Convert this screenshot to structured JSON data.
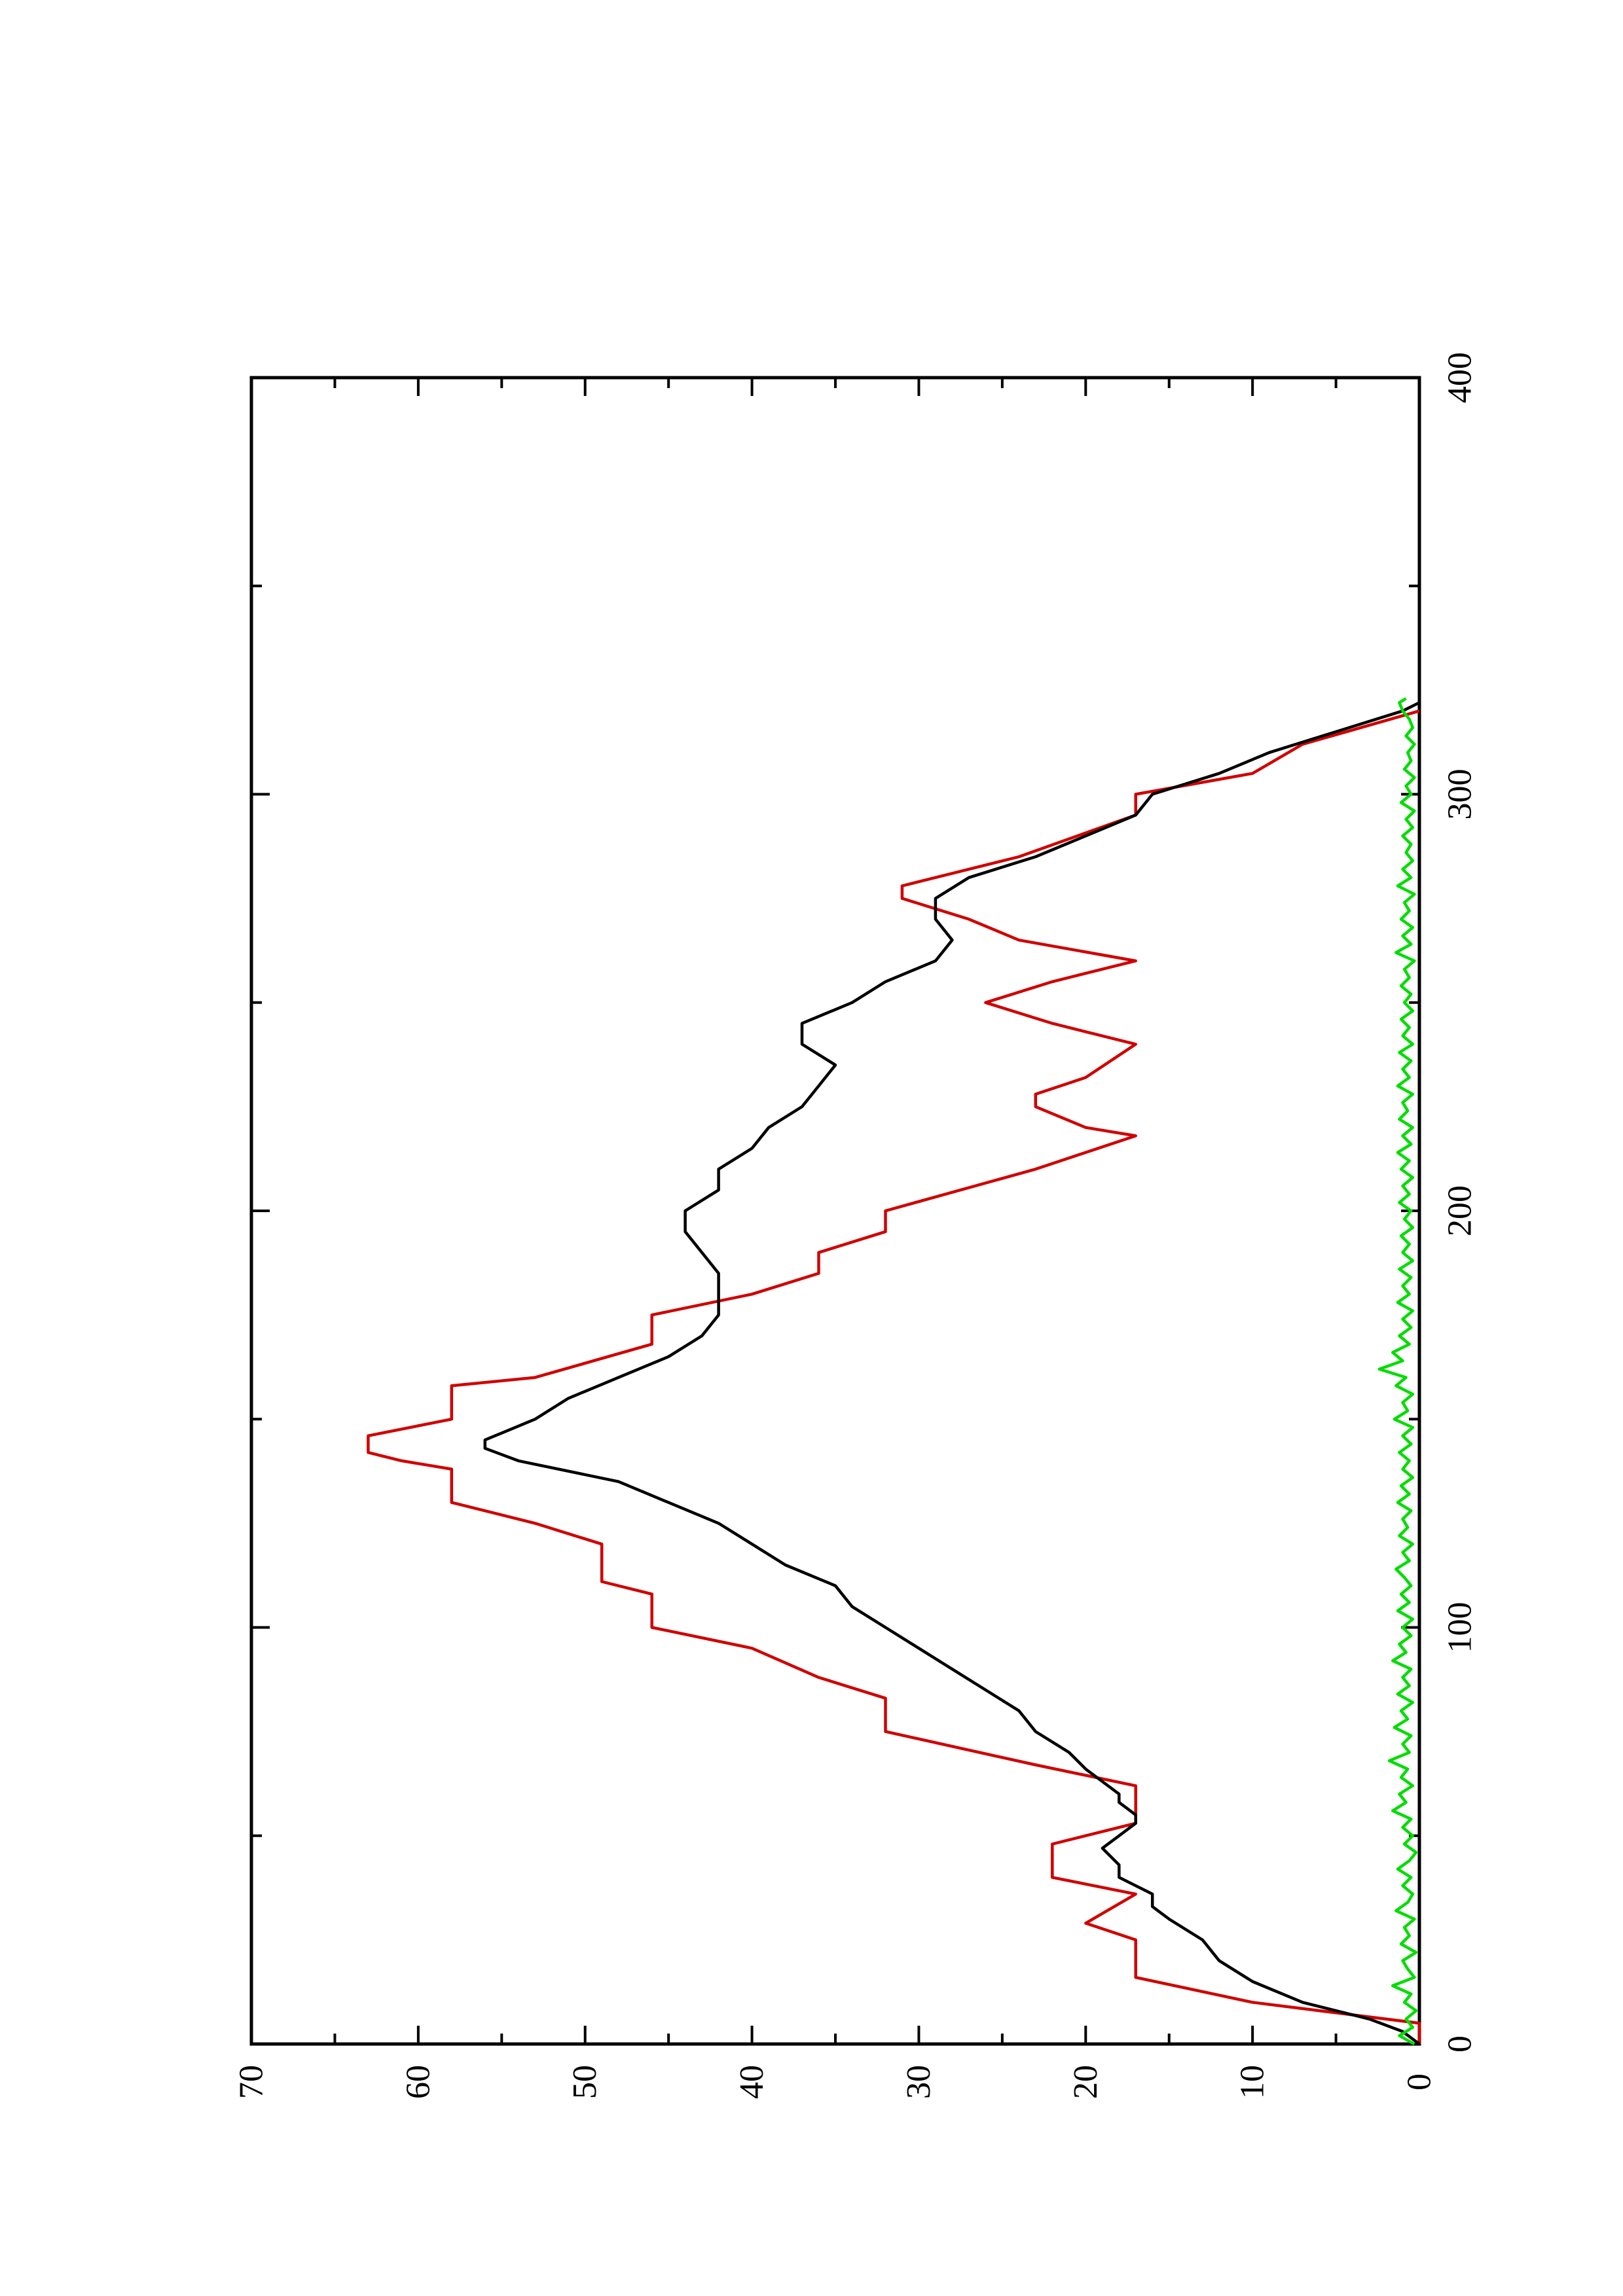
{
  "chart_data": {
    "type": "line",
    "rotated": "page rotated 90 degrees counter-clockwise (x axis runs bottom-to-top on the right edge, y axis runs right-to-left on the bottom edge)",
    "title": "",
    "xlabel": "",
    "ylabel": "",
    "xlim": [
      0,
      400
    ],
    "ylim": [
      0,
      70
    ],
    "x_ticks": [
      0,
      100,
      200,
      300,
      400
    ],
    "y_ticks": [
      0,
      10,
      20,
      30,
      40,
      50,
      60,
      70
    ],
    "x_tick_labels": [
      "0",
      "100",
      "200",
      "300",
      "400"
    ],
    "y_tick_labels": [
      "0",
      "10",
      "20",
      "30",
      "40",
      "50",
      "60",
      "70"
    ],
    "grid": false,
    "legend": "none",
    "series": [
      {
        "color": "#d00000",
        "points": [
          [
            0,
            0
          ],
          [
            5,
            0
          ],
          [
            10,
            10
          ],
          [
            16,
            17
          ],
          [
            25,
            17
          ],
          [
            29,
            20
          ],
          [
            36,
            17
          ],
          [
            40,
            22
          ],
          [
            48,
            22
          ],
          [
            53,
            17
          ],
          [
            62,
            17
          ],
          [
            67,
            23
          ],
          [
            75,
            32
          ],
          [
            83,
            32
          ],
          [
            88,
            36
          ],
          [
            95,
            40
          ],
          [
            100,
            46
          ],
          [
            108,
            46
          ],
          [
            111,
            49
          ],
          [
            120,
            49
          ],
          [
            125,
            53
          ],
          [
            130,
            58
          ],
          [
            138,
            58
          ],
          [
            140,
            61
          ],
          [
            142,
            63
          ],
          [
            146,
            63
          ],
          [
            150,
            58
          ],
          [
            158,
            58
          ],
          [
            160,
            53
          ],
          [
            168,
            46
          ],
          [
            175,
            46
          ],
          [
            180,
            40
          ],
          [
            185,
            36
          ],
          [
            190,
            36
          ],
          [
            195,
            32
          ],
          [
            200,
            32
          ],
          [
            210,
            23
          ],
          [
            218,
            17
          ],
          [
            220,
            20
          ],
          [
            225,
            23
          ],
          [
            228,
            23
          ],
          [
            232,
            20
          ],
          [
            240,
            17
          ],
          [
            245,
            22
          ],
          [
            250,
            26
          ],
          [
            255,
            22
          ],
          [
            260,
            17
          ],
          [
            265,
            24
          ],
          [
            270,
            27
          ],
          [
            275,
            31
          ],
          [
            278,
            31
          ],
          [
            282,
            27
          ],
          [
            285,
            24
          ],
          [
            295,
            17
          ],
          [
            300,
            17
          ],
          [
            305,
            10
          ],
          [
            312,
            7
          ],
          [
            320,
            0
          ]
        ]
      },
      {
        "color": "#000000",
        "points": [
          [
            0,
            0
          ],
          [
            3,
            1
          ],
          [
            6,
            3
          ],
          [
            10,
            7
          ],
          [
            15,
            10
          ],
          [
            20,
            12
          ],
          [
            25,
            13
          ],
          [
            30,
            15
          ],
          [
            33,
            16
          ],
          [
            36,
            16
          ],
          [
            40,
            18
          ],
          [
            43,
            18
          ],
          [
            47,
            19
          ],
          [
            50,
            18
          ],
          [
            53,
            17
          ],
          [
            55,
            17
          ],
          [
            58,
            18
          ],
          [
            60,
            18
          ],
          [
            63,
            19
          ],
          [
            66,
            20
          ],
          [
            70,
            21
          ],
          [
            75,
            23
          ],
          [
            80,
            24
          ],
          [
            85,
            26
          ],
          [
            90,
            28
          ],
          [
            95,
            30
          ],
          [
            100,
            32
          ],
          [
            105,
            34
          ],
          [
            110,
            35
          ],
          [
            115,
            38
          ],
          [
            120,
            40
          ],
          [
            125,
            42
          ],
          [
            130,
            45
          ],
          [
            135,
            48
          ],
          [
            140,
            54
          ],
          [
            143,
            56
          ],
          [
            145,
            56
          ],
          [
            150,
            53
          ],
          [
            155,
            51
          ],
          [
            160,
            48
          ],
          [
            165,
            45
          ],
          [
            170,
            43
          ],
          [
            175,
            42
          ],
          [
            180,
            42
          ],
          [
            185,
            42
          ],
          [
            190,
            43
          ],
          [
            195,
            44
          ],
          [
            200,
            44
          ],
          [
            205,
            42
          ],
          [
            210,
            42
          ],
          [
            215,
            40
          ],
          [
            220,
            39
          ],
          [
            225,
            37
          ],
          [
            230,
            36
          ],
          [
            235,
            35
          ],
          [
            240,
            37
          ],
          [
            245,
            37
          ],
          [
            250,
            34
          ],
          [
            255,
            32
          ],
          [
            260,
            29
          ],
          [
            265,
            28
          ],
          [
            270,
            29
          ],
          [
            275,
            29
          ],
          [
            280,
            27
          ],
          [
            285,
            23
          ],
          [
            290,
            20
          ],
          [
            295,
            17
          ],
          [
            300,
            16
          ],
          [
            305,
            12
          ],
          [
            310,
            9
          ],
          [
            315,
            5
          ],
          [
            320,
            1
          ],
          [
            322,
            0
          ]
        ]
      },
      {
        "color": "#00dd00",
        "points": [
          [
            0,
            0.3
          ],
          [
            2,
            1.2
          ],
          [
            4,
            0.4
          ],
          [
            6,
            0.8
          ],
          [
            8,
            0.2
          ],
          [
            10,
            0.9
          ],
          [
            12,
            0.5
          ],
          [
            14,
            1.6
          ],
          [
            16,
            0.3
          ],
          [
            18,
            0.7
          ],
          [
            20,
            1.0
          ],
          [
            22,
            0.2
          ],
          [
            24,
            1.1
          ],
          [
            26,
            0.6
          ],
          [
            28,
            0.9
          ],
          [
            30,
            0.3
          ],
          [
            32,
            1.4
          ],
          [
            34,
            0.7
          ],
          [
            36,
            0.4
          ],
          [
            38,
            1.0
          ],
          [
            40,
            0.5
          ],
          [
            42,
            1.3
          ],
          [
            44,
            0.6
          ],
          [
            46,
            0.2
          ],
          [
            48,
            0.9
          ],
          [
            50,
            0.4
          ],
          [
            52,
            1.0
          ],
          [
            54,
            0.5
          ],
          [
            56,
            1.6
          ],
          [
            58,
            0.8
          ],
          [
            60,
            1.2
          ],
          [
            62,
            0.4
          ],
          [
            64,
            1.1
          ],
          [
            66,
            0.7
          ],
          [
            68,
            1.8
          ],
          [
            70,
            0.6
          ],
          [
            72,
            1.0
          ],
          [
            74,
            0.5
          ],
          [
            76,
            1.5
          ],
          [
            78,
            0.7
          ],
          [
            80,
            1.1
          ],
          [
            82,
            0.4
          ],
          [
            84,
            1.3
          ],
          [
            86,
            0.6
          ],
          [
            88,
            1.0
          ],
          [
            90,
            0.5
          ],
          [
            92,
            1.6
          ],
          [
            94,
            0.8
          ],
          [
            96,
            1.2
          ],
          [
            98,
            0.5
          ],
          [
            100,
            1.0
          ],
          [
            102,
            0.4
          ],
          [
            104,
            1.3
          ],
          [
            106,
            0.6
          ],
          [
            108,
            1.1
          ],
          [
            110,
            0.5
          ],
          [
            112,
            0.9
          ],
          [
            114,
            1.4
          ],
          [
            116,
            0.6
          ],
          [
            118,
            1.0
          ],
          [
            120,
            0.4
          ],
          [
            122,
            1.2
          ],
          [
            124,
            0.7
          ],
          [
            126,
            1.0
          ],
          [
            128,
            0.5
          ],
          [
            130,
            1.3
          ],
          [
            132,
            0.6
          ],
          [
            134,
            1.1
          ],
          [
            136,
            0.4
          ],
          [
            138,
            1.0
          ],
          [
            140,
            0.6
          ],
          [
            142,
            1.2
          ],
          [
            144,
            0.5
          ],
          [
            146,
            1.0
          ],
          [
            148,
            0.4
          ],
          [
            150,
            1.5
          ],
          [
            152,
            0.7
          ],
          [
            154,
            1.0
          ],
          [
            156,
            0.4
          ],
          [
            158,
            1.4
          ],
          [
            160,
            0.8
          ],
          [
            162,
            2.4
          ],
          [
            164,
            1.0
          ],
          [
            166,
            1.6
          ],
          [
            168,
            0.6
          ],
          [
            170,
            1.2
          ],
          [
            172,
            0.5
          ],
          [
            174,
            1.0
          ],
          [
            176,
            0.4
          ],
          [
            178,
            1.3
          ],
          [
            180,
            0.6
          ],
          [
            182,
            1.0
          ],
          [
            184,
            0.5
          ],
          [
            186,
            1.2
          ],
          [
            188,
            0.4
          ],
          [
            190,
            1.0
          ],
          [
            192,
            0.6
          ],
          [
            194,
            1.1
          ],
          [
            196,
            0.4
          ],
          [
            198,
            0.9
          ],
          [
            200,
            0.5
          ],
          [
            202,
            1.2
          ],
          [
            204,
            0.6
          ],
          [
            206,
            1.0
          ],
          [
            208,
            0.4
          ],
          [
            210,
            1.1
          ],
          [
            212,
            0.6
          ],
          [
            214,
            1.3
          ],
          [
            216,
            0.5
          ],
          [
            218,
            1.0
          ],
          [
            220,
            0.4
          ],
          [
            222,
            1.2
          ],
          [
            224,
            0.7
          ],
          [
            226,
            1.0
          ],
          [
            228,
            0.4
          ],
          [
            230,
            1.3
          ],
          [
            232,
            0.6
          ],
          [
            234,
            1.0
          ],
          [
            236,
            0.5
          ],
          [
            238,
            1.2
          ],
          [
            240,
            0.4
          ],
          [
            242,
            1.0
          ],
          [
            244,
            0.6
          ],
          [
            246,
            1.1
          ],
          [
            248,
            0.4
          ],
          [
            250,
            0.9
          ],
          [
            252,
            0.5
          ],
          [
            254,
            1.1
          ],
          [
            256,
            0.6
          ],
          [
            258,
            0.9
          ],
          [
            260,
            0.3
          ],
          [
            262,
            1.4
          ],
          [
            264,
            0.5
          ],
          [
            266,
            1.0
          ],
          [
            268,
            0.4
          ],
          [
            270,
            1.1
          ],
          [
            272,
            0.6
          ],
          [
            274,
            0.9
          ],
          [
            276,
            0.3
          ],
          [
            278,
            1.3
          ],
          [
            280,
            0.5
          ],
          [
            282,
            1.0
          ],
          [
            284,
            0.4
          ],
          [
            286,
            0.8
          ],
          [
            288,
            0.5
          ],
          [
            290,
            1.0
          ],
          [
            292,
            0.4
          ],
          [
            294,
            0.8
          ],
          [
            296,
            0.3
          ],
          [
            298,
            1.1
          ],
          [
            300,
            0.5
          ],
          [
            302,
            0.8
          ],
          [
            304,
            0.3
          ],
          [
            306,
            0.9
          ],
          [
            308,
            0.5
          ],
          [
            310,
            0.7
          ],
          [
            312,
            0.3
          ],
          [
            314,
            0.8
          ],
          [
            316,
            0.4
          ],
          [
            318,
            0.6
          ],
          [
            320,
            1.0
          ],
          [
            322,
            1.2
          ],
          [
            323,
            0.8
          ]
        ]
      }
    ]
  }
}
